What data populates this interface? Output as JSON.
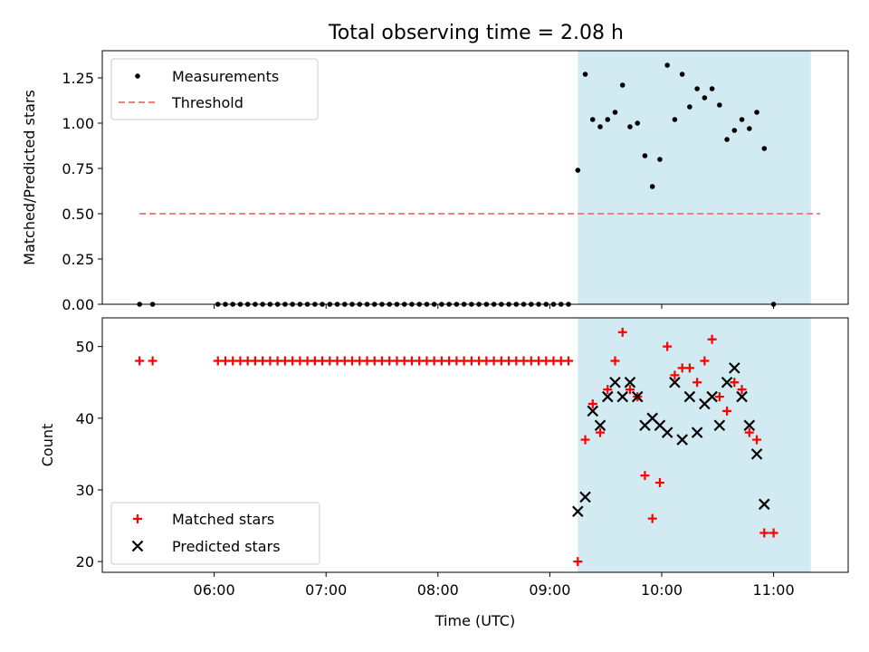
{
  "chart_data": [
    {
      "type": "scatter",
      "title": "Total observing time = 2.08 h",
      "ylabel": "Matched/Predicted stars",
      "ylim": [
        0,
        1.4
      ],
      "yticks": [
        "0.00",
        "0.25",
        "0.50",
        "0.75",
        "1.00",
        "1.25"
      ],
      "legend_placement": "top-left",
      "shaded_interval": [
        "09:15",
        "11:20"
      ],
      "series": [
        {
          "name": "Measurements",
          "color": "#000000",
          "marker": "dot",
          "points": [
            [
              "05:20",
              0
            ],
            [
              "05:27",
              0
            ],
            [
              "06:02",
              0
            ],
            [
              "06:06",
              0
            ],
            [
              "06:10",
              0
            ],
            [
              "06:14",
              0
            ],
            [
              "06:18",
              0
            ],
            [
              "06:22",
              0
            ],
            [
              "06:26",
              0
            ],
            [
              "06:30",
              0
            ],
            [
              "06:34",
              0
            ],
            [
              "06:38",
              0
            ],
            [
              "06:42",
              0
            ],
            [
              "06:46",
              0
            ],
            [
              "06:50",
              0
            ],
            [
              "06:54",
              0
            ],
            [
              "06:58",
              0
            ],
            [
              "07:02",
              0
            ],
            [
              "07:06",
              0
            ],
            [
              "07:10",
              0
            ],
            [
              "07:14",
              0
            ],
            [
              "07:18",
              0
            ],
            [
              "07:22",
              0
            ],
            [
              "07:26",
              0
            ],
            [
              "07:30",
              0
            ],
            [
              "07:34",
              0
            ],
            [
              "07:38",
              0
            ],
            [
              "07:42",
              0
            ],
            [
              "07:46",
              0
            ],
            [
              "07:50",
              0
            ],
            [
              "07:54",
              0
            ],
            [
              "07:58",
              0
            ],
            [
              "08:02",
              0
            ],
            [
              "08:06",
              0
            ],
            [
              "08:10",
              0
            ],
            [
              "08:14",
              0
            ],
            [
              "08:18",
              0
            ],
            [
              "08:22",
              0
            ],
            [
              "08:26",
              0
            ],
            [
              "08:30",
              0
            ],
            [
              "08:34",
              0
            ],
            [
              "08:38",
              0
            ],
            [
              "08:42",
              0
            ],
            [
              "08:46",
              0
            ],
            [
              "08:50",
              0
            ],
            [
              "08:54",
              0
            ],
            [
              "08:58",
              0
            ],
            [
              "09:02",
              0
            ],
            [
              "09:06",
              0
            ],
            [
              "09:10",
              0
            ],
            [
              "09:15",
              0.74
            ],
            [
              "09:19",
              1.27
            ],
            [
              "09:23",
              1.02
            ],
            [
              "09:27",
              0.98
            ],
            [
              "09:31",
              1.02
            ],
            [
              "09:35",
              1.06
            ],
            [
              "09:39",
              1.21
            ],
            [
              "09:43",
              0.98
            ],
            [
              "09:47",
              1.0
            ],
            [
              "09:51",
              0.82
            ],
            [
              "09:55",
              0.65
            ],
            [
              "09:59",
              0.8
            ],
            [
              "10:03",
              1.32
            ],
            [
              "10:07",
              1.02
            ],
            [
              "10:11",
              1.27
            ],
            [
              "10:15",
              1.09
            ],
            [
              "10:19",
              1.19
            ],
            [
              "10:23",
              1.14
            ],
            [
              "10:27",
              1.19
            ],
            [
              "10:31",
              1.1
            ],
            [
              "10:35",
              0.91
            ],
            [
              "10:39",
              0.96
            ],
            [
              "10:43",
              1.02
            ],
            [
              "10:47",
              0.97
            ],
            [
              "10:51",
              1.06
            ],
            [
              "10:55",
              0.86
            ],
            [
              "11:00",
              0
            ]
          ]
        },
        {
          "name": "Threshold",
          "color": "#f08080",
          "style": "dashed",
          "x": [
            "05:20",
            "11:25"
          ],
          "y": [
            0.5,
            0.5
          ]
        }
      ]
    },
    {
      "type": "scatter",
      "xlabel": "Time (UTC)",
      "ylabel": "Count",
      "ylim": [
        18.5,
        54
      ],
      "xlim": [
        "05:00",
        "11:40"
      ],
      "xticks": [
        "06:00",
        "07:00",
        "08:00",
        "09:00",
        "10:00",
        "11:00"
      ],
      "yticks": [
        20,
        30,
        40,
        50
      ],
      "legend_placement": "bottom-left",
      "shaded_interval": [
        "09:15",
        "11:20"
      ],
      "series": [
        {
          "name": "Matched stars",
          "color": "#ff0000",
          "marker": "plus",
          "points": [
            [
              "05:20",
              48
            ],
            [
              "05:27",
              48
            ],
            [
              "06:02",
              48
            ],
            [
              "06:06",
              48
            ],
            [
              "06:10",
              48
            ],
            [
              "06:14",
              48
            ],
            [
              "06:18",
              48
            ],
            [
              "06:22",
              48
            ],
            [
              "06:26",
              48
            ],
            [
              "06:30",
              48
            ],
            [
              "06:34",
              48
            ],
            [
              "06:38",
              48
            ],
            [
              "06:42",
              48
            ],
            [
              "06:46",
              48
            ],
            [
              "06:50",
              48
            ],
            [
              "06:54",
              48
            ],
            [
              "06:58",
              48
            ],
            [
              "07:02",
              48
            ],
            [
              "07:06",
              48
            ],
            [
              "07:10",
              48
            ],
            [
              "07:14",
              48
            ],
            [
              "07:18",
              48
            ],
            [
              "07:22",
              48
            ],
            [
              "07:26",
              48
            ],
            [
              "07:30",
              48
            ],
            [
              "07:34",
              48
            ],
            [
              "07:38",
              48
            ],
            [
              "07:42",
              48
            ],
            [
              "07:46",
              48
            ],
            [
              "07:50",
              48
            ],
            [
              "07:54",
              48
            ],
            [
              "07:58",
              48
            ],
            [
              "08:02",
              48
            ],
            [
              "08:06",
              48
            ],
            [
              "08:10",
              48
            ],
            [
              "08:14",
              48
            ],
            [
              "08:18",
              48
            ],
            [
              "08:22",
              48
            ],
            [
              "08:26",
              48
            ],
            [
              "08:30",
              48
            ],
            [
              "08:34",
              48
            ],
            [
              "08:38",
              48
            ],
            [
              "08:42",
              48
            ],
            [
              "08:46",
              48
            ],
            [
              "08:50",
              48
            ],
            [
              "08:54",
              48
            ],
            [
              "08:58",
              48
            ],
            [
              "09:02",
              48
            ],
            [
              "09:06",
              48
            ],
            [
              "09:10",
              48
            ],
            [
              "09:15",
              20
            ],
            [
              "09:19",
              37
            ],
            [
              "09:23",
              42
            ],
            [
              "09:27",
              38
            ],
            [
              "09:31",
              44
            ],
            [
              "09:35",
              48
            ],
            [
              "09:39",
              52
            ],
            [
              "09:43",
              44
            ],
            [
              "09:47",
              43
            ],
            [
              "09:51",
              32
            ],
            [
              "09:55",
              26
            ],
            [
              "09:59",
              31
            ],
            [
              "10:03",
              50
            ],
            [
              "10:07",
              46
            ],
            [
              "10:11",
              47
            ],
            [
              "10:15",
              47
            ],
            [
              "10:19",
              45
            ],
            [
              "10:23",
              48
            ],
            [
              "10:27",
              51
            ],
            [
              "10:31",
              43
            ],
            [
              "10:35",
              41
            ],
            [
              "10:39",
              45
            ],
            [
              "10:43",
              44
            ],
            [
              "10:47",
              38
            ],
            [
              "10:51",
              37
            ],
            [
              "10:55",
              24
            ],
            [
              "11:00",
              24
            ]
          ]
        },
        {
          "name": "Predicted stars",
          "color": "#000000",
          "marker": "x",
          "points": [
            [
              "09:15",
              27
            ],
            [
              "09:19",
              29
            ],
            [
              "09:23",
              41
            ],
            [
              "09:27",
              39
            ],
            [
              "09:31",
              43
            ],
            [
              "09:35",
              45
            ],
            [
              "09:39",
              43
            ],
            [
              "09:43",
              45
            ],
            [
              "09:47",
              43
            ],
            [
              "09:51",
              39
            ],
            [
              "09:55",
              40
            ],
            [
              "09:59",
              39
            ],
            [
              "10:03",
              38
            ],
            [
              "10:07",
              45
            ],
            [
              "10:11",
              37
            ],
            [
              "10:15",
              43
            ],
            [
              "10:19",
              38
            ],
            [
              "10:23",
              42
            ],
            [
              "10:27",
              43
            ],
            [
              "10:31",
              39
            ],
            [
              "10:35",
              45
            ],
            [
              "10:39",
              47
            ],
            [
              "10:43",
              43
            ],
            [
              "10:47",
              39
            ],
            [
              "10:51",
              35
            ],
            [
              "10:55",
              28
            ]
          ]
        }
      ]
    }
  ]
}
